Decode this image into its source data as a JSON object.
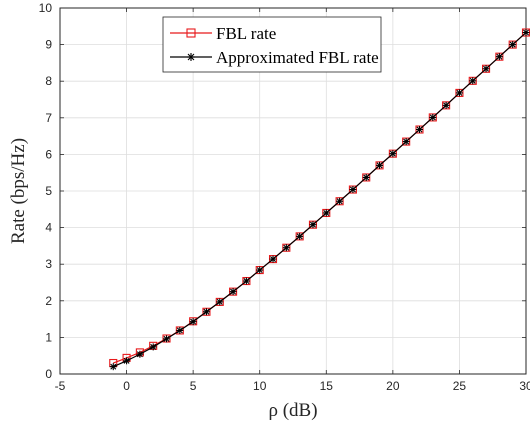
{
  "chart_data": {
    "type": "line",
    "title": "",
    "xlabel": "ρ (dB)",
    "ylabel": "Rate (bps/Hz)",
    "xlim": [
      -5,
      30
    ],
    "ylim": [
      0,
      10
    ],
    "x_ticks": [
      "-5",
      "0",
      "5",
      "10",
      "15",
      "20",
      "25",
      "30"
    ],
    "y_ticks": [
      "0",
      "1",
      "2",
      "3",
      "4",
      "5",
      "6",
      "7",
      "8",
      "9",
      "10"
    ],
    "grid": true,
    "legend_position": "top-center",
    "x": [
      -1,
      0,
      1,
      2,
      3,
      4,
      5,
      6,
      7,
      8,
      9,
      10,
      11,
      12,
      13,
      14,
      15,
      16,
      17,
      18,
      19,
      20,
      21,
      22,
      23,
      24,
      25,
      26,
      27,
      28,
      29,
      30
    ],
    "series": [
      {
        "name": "FBL rate",
        "color": "#e8191b",
        "marker": "square",
        "values": [
          0.3,
          0.44,
          0.59,
          0.77,
          0.97,
          1.19,
          1.44,
          1.7,
          1.97,
          2.25,
          2.54,
          2.84,
          3.14,
          3.45,
          3.76,
          4.08,
          4.4,
          4.72,
          5.04,
          5.37,
          5.7,
          6.02,
          6.35,
          6.68,
          7.01,
          7.34,
          7.68,
          8.01,
          8.34,
          8.67,
          9.0,
          9.33
        ]
      },
      {
        "name": "Approximated FBL rate",
        "color": "#000000",
        "marker": "asterisk",
        "values": [
          0.2,
          0.36,
          0.54,
          0.74,
          0.96,
          1.19,
          1.43,
          1.7,
          1.97,
          2.25,
          2.54,
          2.84,
          3.14,
          3.45,
          3.76,
          4.08,
          4.4,
          4.72,
          5.04,
          5.37,
          5.7,
          6.02,
          6.35,
          6.68,
          7.01,
          7.34,
          7.68,
          8.01,
          8.34,
          8.67,
          9.0,
          9.33
        ]
      }
    ]
  }
}
